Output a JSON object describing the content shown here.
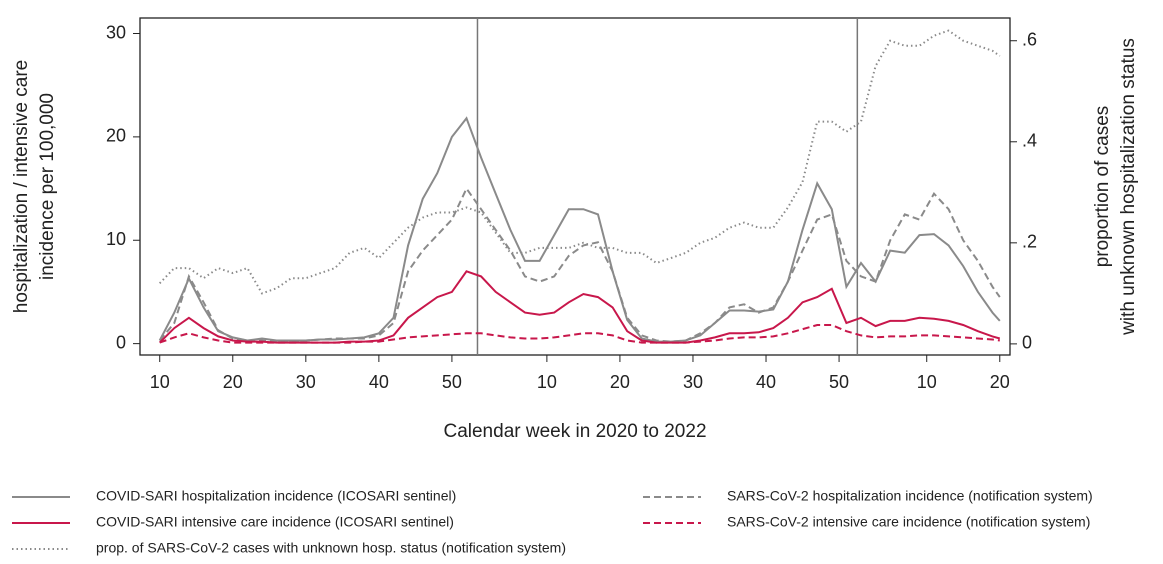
{
  "chart_data": {
    "type": "line",
    "x": [
      10,
      12,
      14,
      16,
      18,
      20,
      22,
      24,
      26,
      28,
      30,
      32,
      34,
      36,
      38,
      40,
      42,
      44,
      46,
      48,
      50,
      52,
      54,
      56,
      58,
      60,
      62,
      64,
      66,
      68,
      70,
      72,
      74,
      76,
      78,
      80,
      82,
      84,
      86,
      88,
      90,
      92,
      94,
      96,
      98,
      100,
      102,
      104,
      106,
      108,
      110,
      112,
      114,
      116,
      118,
      120,
      122,
      124,
      125
    ],
    "xlim": [
      7.3,
      126.4
    ],
    "xticks": [
      10,
      20,
      30,
      40,
      50,
      {
        "value": 63,
        "label": "10"
      },
      {
        "value": 73,
        "label": "20"
      },
      {
        "value": 83,
        "label": "30"
      },
      {
        "value": 93,
        "label": "40"
      },
      {
        "value": 103,
        "label": "50"
      },
      {
        "value": 115,
        "label": "10"
      },
      {
        "value": 125,
        "label": "20"
      }
    ],
    "xlabel": "Calendar week in 2020 to 2022",
    "vlines": [
      53.5,
      105.5
    ],
    "ylim": [
      -1.1,
      31.5
    ],
    "yticks": [
      0,
      10,
      20,
      30
    ],
    "ylabel": [
      "hospitalization / intensive care",
      "incidence per 100,000"
    ],
    "y2lim": [
      -0.022,
      0.645
    ],
    "y2ticks": [
      0,
      {
        "value": 0.2,
        "label": ".2"
      },
      {
        "value": 0.4,
        "label": ".4"
      },
      {
        "value": 0.6,
        "label": ".6"
      }
    ],
    "y2label": [
      "proportion of cases",
      "with unknown hospitalization status"
    ],
    "series": [
      {
        "name": "COVID-SARI hospitalization incidence (ICOSARI sentinel)",
        "color": "#8a8a8a",
        "dash": "solid",
        "values": [
          0.3,
          3,
          6.3,
          3.5,
          1.2,
          0.6,
          0.3,
          0.5,
          0.3,
          0.3,
          0.3,
          0.4,
          0.4,
          0.5,
          0.6,
          1.0,
          2.5,
          9.5,
          14,
          16.5,
          20,
          21.8,
          18,
          14.5,
          11,
          8,
          8,
          10.5,
          13,
          13,
          12.5,
          7,
          2.3,
          0.5,
          0.2,
          0.2,
          0.3,
          0.8,
          2,
          3.2,
          3.2,
          3.1,
          3.3,
          6,
          11,
          15.5,
          13,
          5.5,
          7.8,
          6,
          9,
          8.8,
          10.5,
          10.6,
          9.5,
          7.5,
          5,
          3,
          2.2
        ]
      },
      {
        "name": "SARS-CoV-2 hospitalization incidence (notification system)",
        "color": "#8a8a8a",
        "dash": "dashed",
        "values": [
          0.3,
          2,
          6.5,
          4,
          1.3,
          0.5,
          0.3,
          0.3,
          0.2,
          0.2,
          0.3,
          0.4,
          0.5,
          0.5,
          0.5,
          0.8,
          2,
          7,
          9,
          10.5,
          12,
          15,
          13,
          11,
          9,
          6.5,
          6,
          6.5,
          8.5,
          9.5,
          9.8,
          7,
          2.5,
          0.8,
          0.3,
          0.2,
          0.3,
          1,
          2,
          3.5,
          3.8,
          3,
          3.5,
          6,
          9,
          12,
          12.5,
          8,
          6.5,
          6,
          10,
          12.5,
          12,
          14.5,
          13,
          10,
          8,
          5.5,
          4.5
        ]
      },
      {
        "name": "COVID-SARI intensive care incidence (ICOSARI sentinel)",
        "color": "#c8174b",
        "dash": "solid",
        "values": [
          0.1,
          1.5,
          2.5,
          1.5,
          0.7,
          0.3,
          0.2,
          0.2,
          0.1,
          0.1,
          0.1,
          0.1,
          0.1,
          0.2,
          0.2,
          0.3,
          0.8,
          2.5,
          3.5,
          4.5,
          5,
          7,
          6.5,
          5,
          4,
          3,
          2.8,
          3,
          4,
          4.8,
          4.5,
          3.5,
          1.2,
          0.3,
          0.1,
          0.1,
          0.1,
          0.3,
          0.6,
          1,
          1,
          1.1,
          1.5,
          2.5,
          4,
          4.5,
          5.3,
          2,
          2.5,
          1.7,
          2.2,
          2.2,
          2.5,
          2.4,
          2.2,
          1.8,
          1.2,
          0.7,
          0.5
        ]
      },
      {
        "name": "SARS-CoV-2 intensive care incidence (notification system)",
        "color": "#c8174b",
        "dash": "dashed",
        "values": [
          0.1,
          0.6,
          1,
          0.6,
          0.3,
          0.1,
          0.1,
          0.1,
          0.1,
          0.1,
          0.1,
          0.1,
          0.1,
          0.1,
          0.2,
          0.2,
          0.4,
          0.6,
          0.7,
          0.8,
          0.9,
          1,
          1,
          0.8,
          0.6,
          0.5,
          0.5,
          0.6,
          0.8,
          1,
          1,
          0.8,
          0.3,
          0.1,
          0.1,
          0.1,
          0.1,
          0.2,
          0.3,
          0.5,
          0.6,
          0.6,
          0.7,
          1,
          1.4,
          1.8,
          1.8,
          1.2,
          0.8,
          0.6,
          0.7,
          0.7,
          0.8,
          0.8,
          0.7,
          0.6,
          0.5,
          0.4,
          0.3
        ]
      },
      {
        "name": "prop. of SARS-CoV-2 cases with unknown hosp. status (notification system)",
        "color": "#8a8a8a",
        "dash": "dotted",
        "axis": "y2",
        "values": [
          0.12,
          0.15,
          0.15,
          0.13,
          0.15,
          0.14,
          0.15,
          0.1,
          0.11,
          0.13,
          0.13,
          0.14,
          0.15,
          0.18,
          0.19,
          0.17,
          0.2,
          0.23,
          0.25,
          0.26,
          0.26,
          0.27,
          0.26,
          0.22,
          0.18,
          0.18,
          0.19,
          0.19,
          0.19,
          0.2,
          0.19,
          0.19,
          0.18,
          0.18,
          0.16,
          0.17,
          0.18,
          0.2,
          0.21,
          0.23,
          0.24,
          0.23,
          0.23,
          0.27,
          0.32,
          0.44,
          0.44,
          0.42,
          0.44,
          0.55,
          0.6,
          0.59,
          0.59,
          0.61,
          0.62,
          0.6,
          0.59,
          0.58,
          0.57
        ]
      }
    ]
  }
}
